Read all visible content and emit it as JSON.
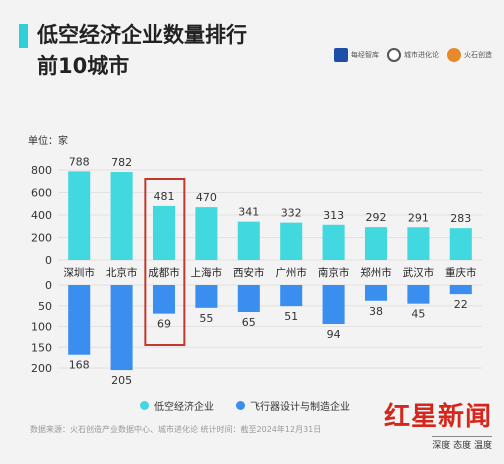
{
  "header": {
    "title_line1": "低空经济企业数量排行",
    "title_line2": "前10城市"
  },
  "logos": [
    {
      "name": "每经智库",
      "text": "每经智库"
    },
    {
      "name": "城市进化论",
      "text": "城市进化论"
    },
    {
      "name": "火石创造",
      "text": "火石创造"
    }
  ],
  "unit_label": "单位：家",
  "footer": {
    "source": "数据来源：火石创造产业数据中心、城市进化论 统计时间：截至2024年12月31日"
  },
  "brand": {
    "name": "红星新闻",
    "tagline": "深度 态度 温度"
  },
  "colors": {
    "top_series": "#42d8df",
    "bottom_series": "#3a8ef0",
    "highlight_box": "#c0392b",
    "grid": "#e2e2e2"
  },
  "chart_data": {
    "type": "bar",
    "title": "",
    "categories": [
      "深圳市",
      "北京市",
      "成都市",
      "上海市",
      "西安市",
      "广州市",
      "南京市",
      "郑州市",
      "武汉市",
      "重庆市"
    ],
    "series": [
      {
        "name": "低空经济企业",
        "values": [
          788,
          782,
          481,
          470,
          341,
          332,
          313,
          292,
          291,
          283
        ]
      },
      {
        "name": "飞行器设计与制造企业",
        "values": [
          168,
          205,
          69,
          55,
          65,
          51,
          94,
          38,
          45,
          22
        ]
      }
    ],
    "top_ylim": [
      0,
      800
    ],
    "top_ticks": [
      0,
      200,
      400,
      600,
      800
    ],
    "bottom_ylim": [
      0,
      200
    ],
    "bottom_ticks": [
      0,
      50,
      100,
      150,
      200
    ],
    "highlight_category": "成都市",
    "legend_position": "bottom",
    "grid": true
  }
}
